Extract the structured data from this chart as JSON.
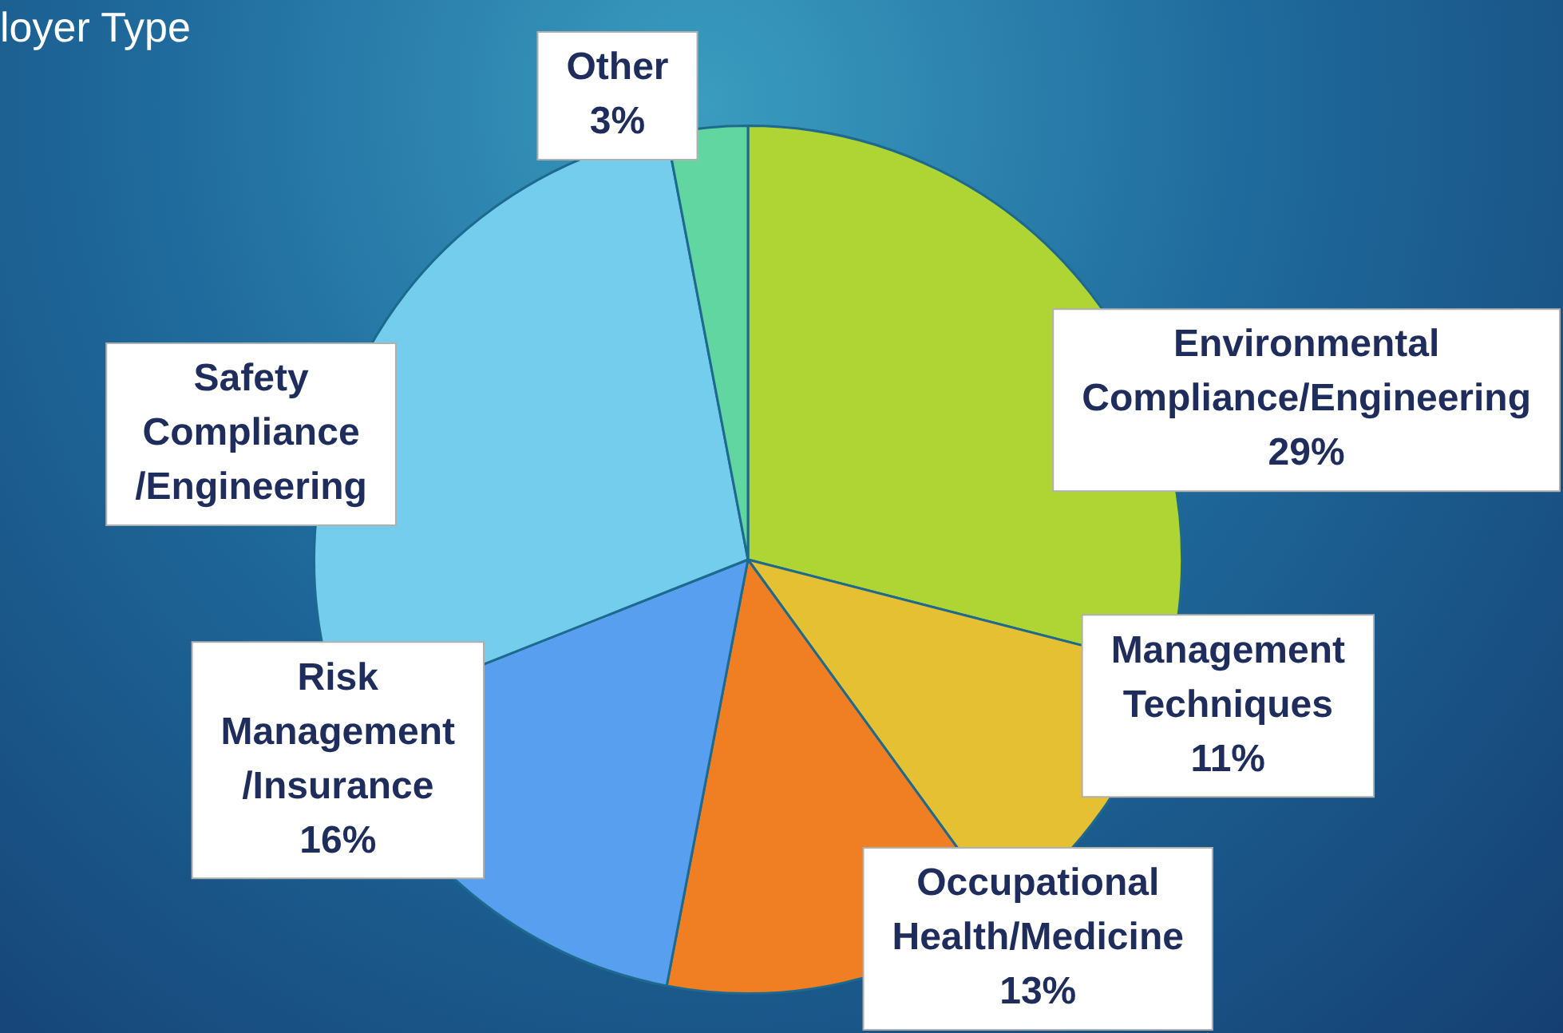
{
  "chart_data": {
    "type": "pie",
    "title": "loyer Type",
    "categories": [
      "Environmental Compliance/Engineering",
      "Management Techniques",
      "Occupational Health/Medicine",
      "Risk Management /Insurance",
      "Safety Compliance /Engineering",
      "Other"
    ],
    "values": [
      29,
      11,
      13,
      16,
      28,
      3
    ],
    "value_labels": [
      "29%",
      "11%",
      "13%",
      "16%",
      null,
      "3%"
    ],
    "colors": [
      "#aed534",
      "#e5c033",
      "#f07e22",
      "#589ff0",
      "#74cdec",
      "#62d6a0"
    ],
    "legend": false
  }
}
